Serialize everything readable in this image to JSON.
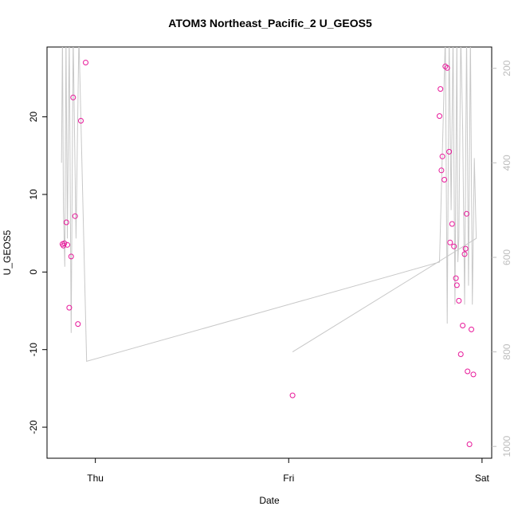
{
  "chart_data": {
    "type": "scatter",
    "title": "ATOM3 Northeast_Pacific_2 U_GEOS5",
    "xlabel": "Date",
    "ylabel": "U_GEOS5",
    "x_ticks": [
      {
        "value": 0,
        "label": "Thu"
      },
      {
        "value": 1,
        "label": "Fri"
      },
      {
        "value": 2,
        "label": "Sat"
      }
    ],
    "xlim": [
      -0.25,
      2.05
    ],
    "ylim": [
      -24,
      29
    ],
    "y_ticks": [
      -20,
      -10,
      0,
      10,
      20
    ],
    "y2_ticks": [
      200,
      400,
      600,
      800,
      1000
    ],
    "y2lim": [
      1025,
      155
    ],
    "grid": false,
    "colors": {
      "points": "#e8189a",
      "pressure": "#c8c8c8",
      "right_axis": "#bdbdbd"
    },
    "series": [
      {
        "marker": "circle",
        "points": [
          [
            -0.17,
            3.6
          ],
          [
            -0.165,
            3.4
          ],
          [
            -0.16,
            3.7
          ],
          [
            -0.15,
            6.4
          ],
          [
            -0.145,
            3.5
          ],
          [
            -0.135,
            -4.6
          ],
          [
            -0.125,
            2.0
          ],
          [
            -0.115,
            22.5
          ],
          [
            -0.105,
            7.2
          ],
          [
            -0.09,
            -6.7
          ],
          [
            -0.075,
            19.5
          ],
          [
            -0.05,
            27.0
          ],
          [
            1.02,
            -15.9
          ],
          [
            1.78,
            20.1
          ],
          [
            1.785,
            23.6
          ],
          [
            1.79,
            13.1
          ],
          [
            1.795,
            14.9
          ],
          [
            1.805,
            11.9
          ],
          [
            1.81,
            26.5
          ],
          [
            1.82,
            26.3
          ],
          [
            1.83,
            15.5
          ],
          [
            1.835,
            3.8
          ],
          [
            1.845,
            6.2
          ],
          [
            1.855,
            3.3
          ],
          [
            1.865,
            -0.8
          ],
          [
            1.87,
            -1.7
          ],
          [
            1.88,
            -3.7
          ],
          [
            1.89,
            -10.6
          ],
          [
            1.9,
            -6.9
          ],
          [
            1.91,
            2.3
          ],
          [
            1.915,
            3.0
          ],
          [
            1.92,
            7.5
          ],
          [
            1.925,
            -12.8
          ],
          [
            1.935,
            -22.2
          ],
          [
            1.945,
            -7.4
          ],
          [
            1.955,
            -13.2
          ]
        ]
      },
      {
        "axis": "right",
        "line": [
          [
            -0.175,
            400
          ],
          [
            -0.17,
            130
          ],
          [
            -0.165,
            500
          ],
          [
            -0.158,
            620
          ],
          [
            -0.152,
            130
          ],
          [
            -0.145,
            560
          ],
          [
            -0.135,
            130
          ],
          [
            -0.125,
            760
          ],
          [
            -0.115,
            130
          ],
          [
            -0.1,
            560
          ],
          [
            -0.085,
            130
          ],
          [
            -0.045,
            820
          ],
          [
            1.78,
            610
          ],
          [
            1.8,
            300
          ],
          [
            1.81,
            130
          ],
          [
            1.82,
            740
          ],
          [
            1.83,
            130
          ],
          [
            1.84,
            500
          ],
          [
            1.85,
            130
          ],
          [
            1.86,
            700
          ],
          [
            1.87,
            130
          ],
          [
            1.875,
            610
          ],
          [
            1.88,
            560
          ],
          [
            1.89,
            130
          ],
          [
            1.9,
            330
          ],
          [
            1.91,
            700
          ],
          [
            1.92,
            130
          ],
          [
            1.93,
            660
          ],
          [
            1.94,
            130
          ],
          [
            1.95,
            700
          ],
          [
            1.96,
            390
          ],
          [
            1.97,
            560
          ],
          [
            1.02,
            800
          ]
        ]
      }
    ]
  }
}
